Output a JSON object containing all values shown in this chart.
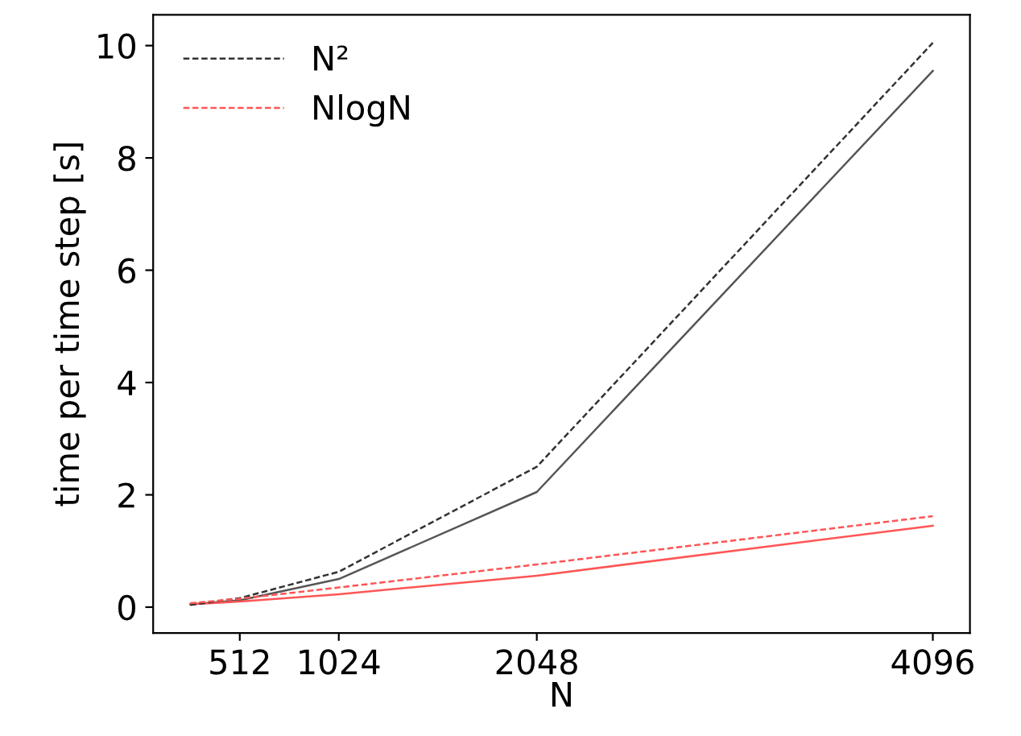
{
  "chart_data": {
    "type": "line",
    "xlabel": "N",
    "ylabel": "time per time step [s]",
    "x": [
      256,
      512,
      1024,
      2048,
      4096
    ],
    "series": [
      {
        "color": "#555555",
        "line_style": "solid",
        "values": [
          0.05,
          0.12,
          0.5,
          2.05,
          9.55
        ]
      },
      {
        "color": "#ff5555",
        "line_style": "solid",
        "values": [
          0.05,
          0.1,
          0.23,
          0.56,
          1.45
        ]
      },
      {
        "name": "N²",
        "color": "#333333",
        "line_style": "dashed",
        "values": [
          0.04,
          0.16,
          0.63,
          2.5,
          10.05
        ]
      },
      {
        "name": "NlogN",
        "color": "#ff5555",
        "line_style": "dashed",
        "values": [
          0.07,
          0.15,
          0.35,
          0.76,
          1.62
        ]
      }
    ],
    "xlim": [
      64,
      4288
    ],
    "xticks": [
      512,
      1024,
      2048,
      4096
    ],
    "ylim": [
      -0.46,
      10.55
    ],
    "yticks": [
      0,
      2,
      4,
      6,
      8,
      10
    ],
    "grid": false,
    "legend": "top left",
    "marker": "none"
  }
}
